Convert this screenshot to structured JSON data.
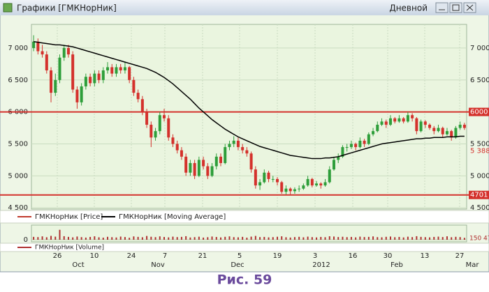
{
  "window": {
    "title": "Графики [ГМКНорНик]",
    "timeframe": "Дневной"
  },
  "chart_data": {
    "type": "candlestick",
    "ylim": [
      4480,
      7370
    ],
    "yticks": [
      {
        "value": 4500,
        "label": "4 500"
      },
      {
        "value": 5000,
        "label": "5 000"
      },
      {
        "value": 5500,
        "label": "5 500"
      },
      {
        "value": 6000,
        "label": "6 000"
      },
      {
        "value": 6500,
        "label": "6 500"
      },
      {
        "value": 7000,
        "label": "7 000"
      }
    ],
    "grid": true,
    "day_labels": [
      "26",
      "10",
      "24",
      "7",
      "21",
      "5",
      "19",
      "3",
      "16",
      "30",
      "13",
      "27"
    ],
    "month_labels": [
      "Oct",
      "Nov",
      "Dec",
      "2012",
      "Feb",
      "Mar"
    ],
    "levels": [
      {
        "value": 6000,
        "label": "6000"
      },
      {
        "value": 4701,
        "label": "4701"
      }
    ],
    "marker": {
      "value": 5388,
      "label": "5 388"
    },
    "series": [
      {
        "name": "ГМКНорНик [Price]",
        "color": "#c0392b",
        "up_color": "#2e9e3a",
        "down_color": "#d4312c",
        "values": [
          [
            7000,
            7200,
            6950,
            7100
          ],
          [
            7100,
            7150,
            6900,
            6950
          ],
          [
            6950,
            7050,
            6850,
            6900
          ],
          [
            6900,
            6950,
            6600,
            6650
          ],
          [
            6650,
            6700,
            6150,
            6300
          ],
          [
            6300,
            6600,
            6250,
            6500
          ],
          [
            6500,
            6900,
            6450,
            6850
          ],
          [
            6850,
            7050,
            6800,
            7000
          ],
          [
            7000,
            7050,
            6850,
            6900
          ],
          [
            6900,
            6950,
            6300,
            6350
          ],
          [
            6350,
            6400,
            6050,
            6150
          ],
          [
            6150,
            6450,
            6100,
            6400
          ],
          [
            6400,
            6600,
            6350,
            6550
          ],
          [
            6550,
            6600,
            6400,
            6450
          ],
          [
            6450,
            6650,
            6400,
            6600
          ],
          [
            6600,
            6650,
            6450,
            6500
          ],
          [
            6500,
            6700,
            6450,
            6650
          ],
          [
            6650,
            6780,
            6600,
            6700
          ],
          [
            6700,
            6750,
            6550,
            6600
          ],
          [
            6600,
            6750,
            6550,
            6700
          ],
          [
            6700,
            6750,
            6600,
            6650
          ],
          [
            6650,
            6780,
            6600,
            6700
          ],
          [
            6700,
            6720,
            6450,
            6500
          ],
          [
            6500,
            6550,
            6250,
            6300
          ],
          [
            6300,
            6350,
            6150,
            6200
          ],
          [
            6200,
            6250,
            5950,
            6000
          ],
          [
            6000,
            6050,
            5750,
            5800
          ],
          [
            5800,
            5850,
            5450,
            5600
          ],
          [
            5600,
            5750,
            5550,
            5700
          ],
          [
            5700,
            6000,
            5650,
            5950
          ],
          [
            5950,
            6050,
            5850,
            5900
          ],
          [
            5900,
            5950,
            5550,
            5600
          ],
          [
            5600,
            5650,
            5450,
            5500
          ],
          [
            5500,
            5550,
            5350,
            5400
          ],
          [
            5400,
            5450,
            5250,
            5300
          ],
          [
            5300,
            5350,
            5000,
            5050
          ],
          [
            5050,
            5250,
            5000,
            5200
          ],
          [
            5200,
            5250,
            4950,
            5000
          ],
          [
            5000,
            5300,
            4980,
            5250
          ],
          [
            5250,
            5300,
            5100,
            5150
          ],
          [
            5150,
            5200,
            4950,
            5000
          ],
          [
            5000,
            5200,
            4980,
            5150
          ],
          [
            5150,
            5350,
            5100,
            5300
          ],
          [
            5300,
            5350,
            5150,
            5200
          ],
          [
            5200,
            5500,
            5180,
            5450
          ],
          [
            5450,
            5550,
            5400,
            5500
          ],
          [
            5500,
            5620,
            5450,
            5550
          ],
          [
            5550,
            5600,
            5400,
            5450
          ],
          [
            5450,
            5500,
            5350,
            5400
          ],
          [
            5400,
            5450,
            5300,
            5350
          ],
          [
            5350,
            5380,
            5050,
            5100
          ],
          [
            5100,
            5150,
            4800,
            4850
          ],
          [
            4850,
            4950,
            4780,
            4900
          ],
          [
            4900,
            5100,
            4880,
            5050
          ],
          [
            5050,
            5080,
            4900,
            4950
          ],
          [
            4950,
            5000,
            4900,
            4950
          ],
          [
            4950,
            4980,
            4850,
            4900
          ],
          [
            4900,
            4920,
            4720,
            4750
          ],
          [
            4750,
            4850,
            4710,
            4800
          ],
          [
            4800,
            4820,
            4710,
            4760
          ],
          [
            4760,
            4820,
            4720,
            4790
          ],
          [
            4790,
            4850,
            4750,
            4800
          ],
          [
            4800,
            4880,
            4780,
            4850
          ],
          [
            4850,
            5000,
            4830,
            4950
          ],
          [
            4950,
            4970,
            4820,
            4850
          ],
          [
            4850,
            4920,
            4830,
            4880
          ],
          [
            4880,
            4900,
            4800,
            4850
          ],
          [
            4850,
            4950,
            4830,
            4900
          ],
          [
            4900,
            5150,
            4880,
            5100
          ],
          [
            5100,
            5300,
            5080,
            5250
          ],
          [
            5250,
            5350,
            5200,
            5300
          ],
          [
            5300,
            5480,
            5280,
            5450
          ],
          [
            5450,
            5500,
            5380,
            5450
          ],
          [
            5450,
            5550,
            5420,
            5500
          ],
          [
            5500,
            5520,
            5400,
            5450
          ],
          [
            5450,
            5600,
            5430,
            5550
          ],
          [
            5550,
            5580,
            5450,
            5500
          ],
          [
            5500,
            5680,
            5480,
            5650
          ],
          [
            5650,
            5750,
            5620,
            5700
          ],
          [
            5700,
            5850,
            5680,
            5800
          ],
          [
            5800,
            5900,
            5780,
            5850
          ],
          [
            5850,
            5880,
            5750,
            5800
          ],
          [
            5800,
            5950,
            5780,
            5900
          ],
          [
            5900,
            5920,
            5820,
            5850
          ],
          [
            5850,
            5950,
            5830,
            5900
          ],
          [
            5900,
            5920,
            5820,
            5850
          ],
          [
            5850,
            6000,
            5830,
            5950
          ],
          [
            5950,
            5980,
            5850,
            5900
          ],
          [
            5900,
            5920,
            5650,
            5700
          ],
          [
            5700,
            5880,
            5680,
            5850
          ],
          [
            5850,
            5870,
            5750,
            5800
          ],
          [
            5800,
            5820,
            5720,
            5750
          ],
          [
            5750,
            5780,
            5650,
            5700
          ],
          [
            5700,
            5800,
            5680,
            5750
          ],
          [
            5750,
            5770,
            5600,
            5650
          ],
          [
            5650,
            5750,
            5630,
            5700
          ],
          [
            5700,
            5720,
            5550,
            5600
          ],
          [
            5600,
            5780,
            5580,
            5750
          ],
          [
            5750,
            5850,
            5720,
            5800
          ],
          [
            5800,
            5830,
            5720,
            5750
          ]
        ]
      },
      {
        "name": "ГМКНорНик [Moving Average]",
        "color": "#000000",
        "values": [
          7100,
          7090,
          7080,
          7070,
          7060,
          7050,
          7050,
          7040,
          7030,
          7020,
          7000,
          6980,
          6960,
          6940,
          6920,
          6900,
          6880,
          6860,
          6840,
          6820,
          6800,
          6780,
          6760,
          6740,
          6720,
          6700,
          6680,
          6650,
          6620,
          6580,
          6540,
          6490,
          6440,
          6380,
          6320,
          6260,
          6200,
          6130,
          6060,
          6000,
          5940,
          5880,
          5830,
          5780,
          5730,
          5690,
          5650,
          5610,
          5580,
          5550,
          5520,
          5490,
          5460,
          5440,
          5420,
          5400,
          5380,
          5360,
          5340,
          5320,
          5310,
          5300,
          5290,
          5280,
          5270,
          5270,
          5270,
          5280,
          5280,
          5290,
          5300,
          5320,
          5340,
          5360,
          5380,
          5400,
          5420,
          5440,
          5460,
          5480,
          5500,
          5510,
          5520,
          5530,
          5540,
          5550,
          5560,
          5570,
          5580,
          5580,
          5590,
          5590,
          5600,
          5600,
          5600,
          5610,
          5610,
          5610,
          5620,
          5620
        ]
      }
    ],
    "volume": {
      "name": "ГМКНорНик [Volume]",
      "color": "#b03030",
      "ylim": [
        0,
        2400
      ],
      "yticks": [
        0
      ],
      "last_label": "150 47",
      "values": [
        520,
        480,
        610,
        450,
        700,
        560,
        1800,
        640,
        520,
        430,
        580,
        470,
        390,
        510,
        620,
        440,
        380,
        530,
        460,
        410,
        570,
        490,
        360,
        600,
        520,
        450,
        680,
        540,
        470,
        610,
        500,
        430,
        560,
        480,
        520,
        640,
        410,
        470,
        550,
        390,
        460,
        580,
        500,
        420,
        530,
        610,
        470,
        440,
        520,
        380,
        560,
        690,
        480,
        510,
        430,
        470,
        540,
        620,
        450,
        400,
        480,
        530,
        440,
        560,
        470,
        420,
        510,
        460,
        630,
        580,
        490,
        540,
        470,
        510,
        430,
        560,
        490,
        520,
        600,
        470,
        440,
        530,
        580,
        460,
        510,
        420,
        550,
        480,
        640,
        520,
        470,
        430,
        510,
        560,
        490,
        620,
        450,
        530,
        480,
        340
      ]
    }
  },
  "caption": "Рис. 59"
}
